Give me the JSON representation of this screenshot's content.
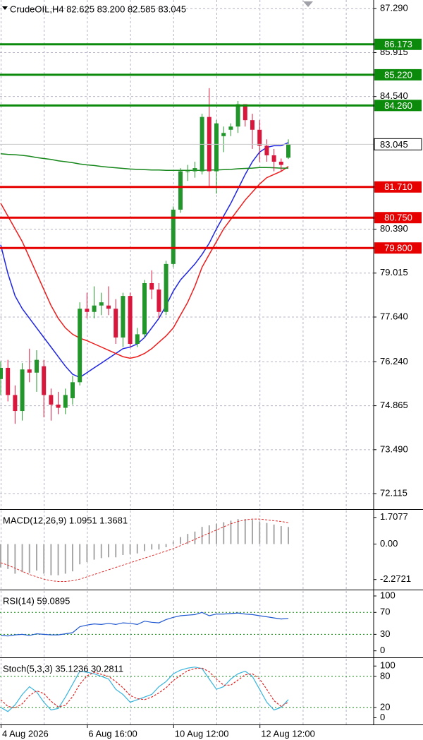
{
  "chart_data": [
    {
      "type": "candlestick",
      "title": "CrudeOIL,H4  82.625 83.200 82.585 83.045",
      "categories": [
        "4 Aug 2026",
        null,
        null,
        null,
        null,
        null,
        null,
        null,
        null,
        null,
        null,
        null,
        "6 Aug 16:00",
        null,
        null,
        null,
        null,
        null,
        null,
        null,
        null,
        null,
        null,
        null,
        "10 Aug 12:00",
        null,
        null,
        null,
        null,
        null,
        null,
        null,
        null,
        null,
        null,
        null,
        "12 Aug 12:00",
        null,
        null,
        null,
        null
      ],
      "open": [
        75.7,
        76.05,
        75.2,
        74.7,
        76.0,
        75.9,
        76.1,
        75.2,
        74.9,
        74.8,
        75.1,
        75.6,
        77.9,
        77.8,
        78.0,
        78.0,
        77.9,
        77.0,
        78.3,
        76.8,
        77.1,
        78.7,
        78.5,
        77.8,
        79.3,
        81.0,
        82.2,
        82.2,
        82.2,
        83.9,
        82.2,
        83.3,
        83.5,
        83.6,
        84.3,
        83.8,
        83.5,
        83.0,
        82.7,
        82.5,
        82.625
      ],
      "high": [
        76.25,
        76.3,
        75.5,
        76.2,
        76.65,
        76.6,
        76.3,
        75.4,
        75.3,
        75.4,
        75.8,
        78.1,
        78.4,
        78.6,
        78.4,
        78.6,
        78.2,
        78.4,
        78.4,
        77.3,
        78.8,
        79.1,
        78.7,
        79.4,
        81.1,
        82.3,
        82.4,
        82.5,
        84.0,
        84.8,
        83.8,
        83.6,
        83.7,
        84.4,
        84.3,
        84.0,
        83.8,
        83.2,
        82.9,
        82.6,
        83.2
      ],
      "low": [
        75.2,
        75.0,
        74.3,
        74.4,
        75.6,
        75.3,
        74.5,
        74.4,
        74.6,
        74.6,
        74.9,
        75.5,
        77.6,
        77.6,
        77.7,
        77.7,
        76.8,
        76.7,
        76.7,
        76.7,
        77.0,
        78.2,
        77.6,
        77.7,
        79.2,
        80.9,
        81.9,
        82.0,
        82.1,
        81.7,
        81.5,
        82.8,
        83.3,
        83.4,
        83.6,
        82.9,
        82.5,
        82.5,
        82.2,
        82.2,
        82.585
      ],
      "close": [
        76.05,
        75.2,
        74.7,
        76.0,
        75.9,
        76.3,
        75.2,
        74.9,
        74.8,
        75.2,
        75.6,
        77.9,
        77.8,
        78.0,
        78.1,
        77.9,
        77.0,
        78.3,
        76.8,
        77.1,
        78.7,
        78.5,
        77.8,
        79.3,
        81.0,
        82.2,
        82.2,
        82.3,
        83.9,
        82.2,
        83.7,
        83.4,
        83.6,
        84.3,
        83.8,
        83.5,
        83.0,
        82.7,
        82.5,
        82.4,
        83.045
      ],
      "up_color": "#23962b",
      "down_color": "#d9163c",
      "series": [
        {
          "color": "#1f25e0",
          "values": [
            79.9,
            79.0,
            78.3,
            77.9,
            77.6,
            77.3,
            77.0,
            76.7,
            76.4,
            76.1,
            75.85,
            75.75,
            75.9,
            76.05,
            76.2,
            76.35,
            76.5,
            76.65,
            76.7,
            76.8,
            77.0,
            77.3,
            77.6,
            78.0,
            78.45,
            78.8,
            79.05,
            79.3,
            79.6,
            79.95,
            80.4,
            80.8,
            81.2,
            81.65,
            82.1,
            82.5,
            82.8,
            82.95,
            83.0,
            83.0,
            83.1
          ]
        },
        {
          "color": "#ec1c1c",
          "values": [
            81.2,
            80.8,
            80.4,
            80.0,
            79.5,
            79.0,
            78.5,
            78.0,
            77.6,
            77.3,
            77.1,
            76.98,
            76.9,
            76.8,
            76.7,
            76.6,
            76.5,
            76.4,
            76.35,
            76.4,
            76.5,
            76.65,
            76.85,
            77.05,
            77.3,
            77.7,
            78.1,
            78.6,
            79.2,
            79.6,
            80.0,
            80.4,
            80.7,
            81.0,
            81.3,
            81.55,
            81.8,
            82.0,
            82.1,
            82.2,
            82.35
          ]
        },
        {
          "color": "#16871a",
          "values": [
            82.75,
            82.73,
            82.72,
            82.7,
            82.67,
            82.63,
            82.6,
            82.57,
            82.53,
            82.5,
            82.47,
            82.43,
            82.4,
            82.38,
            82.35,
            82.33,
            82.31,
            82.29,
            82.27,
            82.26,
            82.25,
            82.24,
            82.24,
            82.23,
            82.23,
            82.23,
            82.23,
            82.23,
            82.23,
            82.24,
            82.24,
            82.25,
            82.26,
            82.28,
            82.29,
            82.3,
            82.32,
            82.32,
            82.31,
            82.3,
            82.3
          ]
        }
      ],
      "levels": [
        {
          "value": 86.173,
          "color": "#0b8a0b"
        },
        {
          "value": 85.22,
          "label": "85.220",
          "color": "#0b8a0b"
        },
        {
          "value": 84.26,
          "label": "84.260",
          "color": "#0b8a0b"
        },
        {
          "value": 81.71,
          "label": "81.710",
          "color": "#e60000"
        },
        {
          "value": 80.75,
          "label": "80.750",
          "color": "#e60000"
        },
        {
          "value": 79.8,
          "label": "79.800",
          "color": "#e60000"
        }
      ],
      "last_price": 83.045,
      "ylim": [
        71.63,
        87.56
      ],
      "yticks": [
        {
          "value": 87.29,
          "label": "87.290"
        },
        85.915,
        {
          "value": 84.54,
          "label": "84.540"
        },
        {
          "value": 80.39,
          "label": "80.390"
        },
        79.015,
        {
          "value": 77.64,
          "label": "77.640"
        },
        {
          "value": 76.24,
          "label": "76.240"
        },
        74.865,
        {
          "value": 73.49,
          "label": "73.490"
        },
        72.115
      ],
      "grid": true
    },
    {
      "type": "macd",
      "title": "MACD(12,26,9) 1.0951 1.3681",
      "series": [
        {
          "style": "histogram",
          "color": "#a8a8a8",
          "values": [
            -1.5,
            -1.6,
            -1.9,
            -1.8,
            -1.85,
            -1.7,
            -1.9,
            -2.0,
            -2.0,
            -1.9,
            -1.75,
            -1.3,
            -1.15,
            -1.0,
            -0.9,
            -0.85,
            -0.85,
            -0.7,
            -0.65,
            -0.6,
            -0.45,
            -0.35,
            -0.35,
            -0.2,
            0.15,
            0.45,
            0.65,
            0.8,
            1.1,
            1.2,
            1.3,
            1.4,
            1.5,
            1.6,
            1.6,
            1.55,
            1.45,
            1.35,
            1.25,
            1.15,
            1.0951
          ]
        },
        {
          "style": "dashed",
          "color": "#e02828",
          "values": [
            -1.2,
            -1.35,
            -1.55,
            -1.75,
            -1.95,
            -2.1,
            -2.25,
            -2.35,
            -2.4,
            -2.4,
            -2.35,
            -2.25,
            -2.1,
            -1.95,
            -1.8,
            -1.65,
            -1.5,
            -1.35,
            -1.2,
            -1.05,
            -0.9,
            -0.75,
            -0.6,
            -0.45,
            -0.3,
            -0.1,
            0.1,
            0.3,
            0.5,
            0.7,
            0.9,
            1.1,
            1.3,
            1.45,
            1.55,
            1.6,
            1.6,
            1.55,
            1.5,
            1.45,
            1.3681
          ]
        }
      ],
      "ylim": [
        -2.92,
        2.15
      ],
      "yticks": [
        1.7077,
        {
          "value": 0,
          "label": "0.00"
        },
        -2.2721
      ]
    },
    {
      "type": "oscillator",
      "title": "RSI(14) 59.0895",
      "series": [
        {
          "style": "solid",
          "color": "#2058d0",
          "values": [
            28,
            27,
            29,
            30,
            28,
            31,
            30,
            29,
            29,
            31,
            33,
            44,
            47,
            49,
            48,
            50,
            48,
            51,
            50,
            48,
            54,
            52,
            51,
            57,
            61,
            64,
            65,
            66,
            70,
            64,
            67,
            67,
            68,
            69,
            67,
            66,
            64,
            62,
            60,
            58,
            59.0895
          ]
        }
      ],
      "levels": [
        70,
        30
      ],
      "level_color": "#0b8a0b",
      "ylim": [
        -12,
        109
      ],
      "yticks": [
        100,
        70,
        30,
        0
      ]
    },
    {
      "type": "oscillator",
      "title": "Stoch(5,3,3) 35.1236 30.2811",
      "series": [
        {
          "style": "solid",
          "color": "#38b4dc",
          "values": [
            20,
            12,
            25,
            45,
            60,
            50,
            30,
            15,
            18,
            40,
            65,
            90,
            88,
            85,
            80,
            75,
            55,
            45,
            30,
            35,
            40,
            45,
            60,
            70,
            85,
            92,
            96,
            98,
            95,
            75,
            55,
            60,
            75,
            85,
            90,
            80,
            55,
            30,
            15,
            20,
            35.1236
          ]
        },
        {
          "style": "dashed",
          "color": "#e02828",
          "values": [
            35,
            22,
            19,
            27,
            43,
            52,
            47,
            32,
            21,
            24,
            41,
            65,
            81,
            88,
            84,
            80,
            70,
            58,
            43,
            37,
            35,
            40,
            48,
            58,
            72,
            82,
            91,
            95,
            96,
            89,
            75,
            63,
            63,
            73,
            83,
            85,
            75,
            55,
            33,
            22,
            30.2811
          ]
        }
      ],
      "levels": [
        80,
        20
      ],
      "level_color": "#0b8a0b",
      "ylim": [
        -13,
        114
      ],
      "yticks": [
        100,
        80,
        20,
        0
      ]
    }
  ]
}
